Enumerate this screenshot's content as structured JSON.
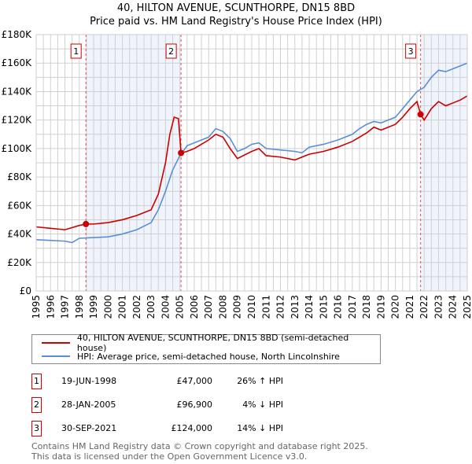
{
  "chart_data": {
    "type": "line",
    "title": "40, HILTON AVENUE, SCUNTHORPE, DN15 8BD",
    "subtitle": "Price paid vs. HM Land Registry's House Price Index (HPI)",
    "xlim": [
      1995,
      2025
    ],
    "ylim": [
      0,
      180000
    ],
    "x_ticks": [
      "1995",
      "1996",
      "1997",
      "1998",
      "1999",
      "2000",
      "2001",
      "2002",
      "2003",
      "2004",
      "2005",
      "2006",
      "2007",
      "2008",
      "2009",
      "2010",
      "2011",
      "2012",
      "2013",
      "2014",
      "2015",
      "2016",
      "2017",
      "2018",
      "2019",
      "2020",
      "2021",
      "2022",
      "2023",
      "2024",
      "2025"
    ],
    "y_ticks": [
      {
        "v": 0,
        "label": "£0"
      },
      {
        "v": 20000,
        "label": "£20K"
      },
      {
        "v": 40000,
        "label": "£40K"
      },
      {
        "v": 60000,
        "label": "£60K"
      },
      {
        "v": 80000,
        "label": "£80K"
      },
      {
        "v": 100000,
        "label": "£100K"
      },
      {
        "v": 120000,
        "label": "£120K"
      },
      {
        "v": 140000,
        "label": "£140K"
      },
      {
        "v": 160000,
        "label": "£160K"
      },
      {
        "v": 180000,
        "label": "£180K"
      }
    ],
    "grid": true,
    "series": [
      {
        "name": "40, HILTON AVENUE, SCUNTHORPE, DN15 8BD (semi-detached house)",
        "color": "#cc0000",
        "points": [
          [
            1995,
            45000
          ],
          [
            1996,
            44000
          ],
          [
            1997,
            43000
          ],
          [
            1998,
            46000
          ],
          [
            1998.46,
            47000
          ],
          [
            1999,
            47000
          ],
          [
            2000,
            48000
          ],
          [
            2001,
            50000
          ],
          [
            2002,
            53000
          ],
          [
            2003,
            57000
          ],
          [
            2003.5,
            68000
          ],
          [
            2004,
            90000
          ],
          [
            2004.3,
            110000
          ],
          [
            2004.6,
            122000
          ],
          [
            2004.9,
            121000
          ],
          [
            2005.08,
            96900
          ],
          [
            2005.5,
            98000
          ],
          [
            2006,
            100000
          ],
          [
            2007,
            106000
          ],
          [
            2007.5,
            110000
          ],
          [
            2008,
            108000
          ],
          [
            2008.5,
            100000
          ],
          [
            2009,
            93000
          ],
          [
            2010,
            98000
          ],
          [
            2010.5,
            100000
          ],
          [
            2011,
            95000
          ],
          [
            2012,
            94000
          ],
          [
            2013,
            92000
          ],
          [
            2014,
            96000
          ],
          [
            2015,
            98000
          ],
          [
            2016,
            101000
          ],
          [
            2017,
            105000
          ],
          [
            2018,
            111000
          ],
          [
            2018.5,
            115000
          ],
          [
            2019,
            113000
          ],
          [
            2020,
            117000
          ],
          [
            2020.5,
            122000
          ],
          [
            2021,
            128000
          ],
          [
            2021.5,
            133000
          ],
          [
            2021.75,
            124000
          ],
          [
            2022,
            120000
          ],
          [
            2022.5,
            128000
          ],
          [
            2023,
            133000
          ],
          [
            2023.5,
            130000
          ],
          [
            2024,
            132000
          ],
          [
            2024.5,
            134000
          ],
          [
            2025,
            137000
          ]
        ]
      },
      {
        "name": "HPI: Average price, semi-detached house, North Lincolnshire",
        "color": "#5b8fd4",
        "points": [
          [
            1995,
            36000
          ],
          [
            1996,
            35500
          ],
          [
            1997,
            35000
          ],
          [
            1997.5,
            34000
          ],
          [
            1998,
            37000
          ],
          [
            1999,
            37500
          ],
          [
            2000,
            38000
          ],
          [
            2001,
            40000
          ],
          [
            2002,
            43000
          ],
          [
            2003,
            48000
          ],
          [
            2003.5,
            57000
          ],
          [
            2004,
            70000
          ],
          [
            2004.5,
            85000
          ],
          [
            2005,
            95000
          ],
          [
            2005.5,
            102000
          ],
          [
            2006,
            104000
          ],
          [
            2007,
            108000
          ],
          [
            2007.5,
            114000
          ],
          [
            2008,
            112000
          ],
          [
            2008.5,
            107000
          ],
          [
            2009,
            98000
          ],
          [
            2009.5,
            100000
          ],
          [
            2010,
            103000
          ],
          [
            2010.5,
            104000
          ],
          [
            2011,
            100000
          ],
          [
            2012,
            99000
          ],
          [
            2013,
            98000
          ],
          [
            2013.5,
            97000
          ],
          [
            2014,
            101000
          ],
          [
            2015,
            103000
          ],
          [
            2016,
            106000
          ],
          [
            2017,
            110000
          ],
          [
            2017.5,
            114000
          ],
          [
            2018,
            117000
          ],
          [
            2018.5,
            119000
          ],
          [
            2019,
            118000
          ],
          [
            2019.5,
            120000
          ],
          [
            2020,
            122000
          ],
          [
            2020.5,
            128000
          ],
          [
            2021,
            134000
          ],
          [
            2021.5,
            140000
          ],
          [
            2022,
            143000
          ],
          [
            2022.5,
            150000
          ],
          [
            2023,
            155000
          ],
          [
            2023.5,
            154000
          ],
          [
            2024,
            156000
          ],
          [
            2024.5,
            158000
          ],
          [
            2025,
            160000
          ]
        ]
      }
    ],
    "sales": [
      {
        "label": "1",
        "x": 1998.46,
        "y": 47000
      },
      {
        "label": "2",
        "x": 2005.08,
        "y": 96900
      },
      {
        "label": "3",
        "x": 2021.75,
        "y": 124000
      }
    ],
    "shaded_ranges": [
      [
        1998.46,
        2005.08
      ],
      [
        2021.75,
        2025
      ]
    ],
    "legend_placement": "below"
  },
  "legend": {
    "red": "40, HILTON AVENUE, SCUNTHORPE, DN15 8BD (semi-detached house)",
    "blue": "HPI: Average price, semi-detached house, North Lincolnshire"
  },
  "transactions": [
    {
      "n": "1",
      "date": "19-JUN-1998",
      "price": "£47,000",
      "hpi": "26% ↑ HPI"
    },
    {
      "n": "2",
      "date": "28-JAN-2005",
      "price": "£96,900",
      "hpi": "4% ↓ HPI"
    },
    {
      "n": "3",
      "date": "30-SEP-2021",
      "price": "£124,000",
      "hpi": "14% ↓ HPI"
    }
  ],
  "footer": {
    "line1": "Contains HM Land Registry data © Crown copyright and database right 2025.",
    "line2": "This data is licensed under the Open Government Licence v3.0."
  }
}
